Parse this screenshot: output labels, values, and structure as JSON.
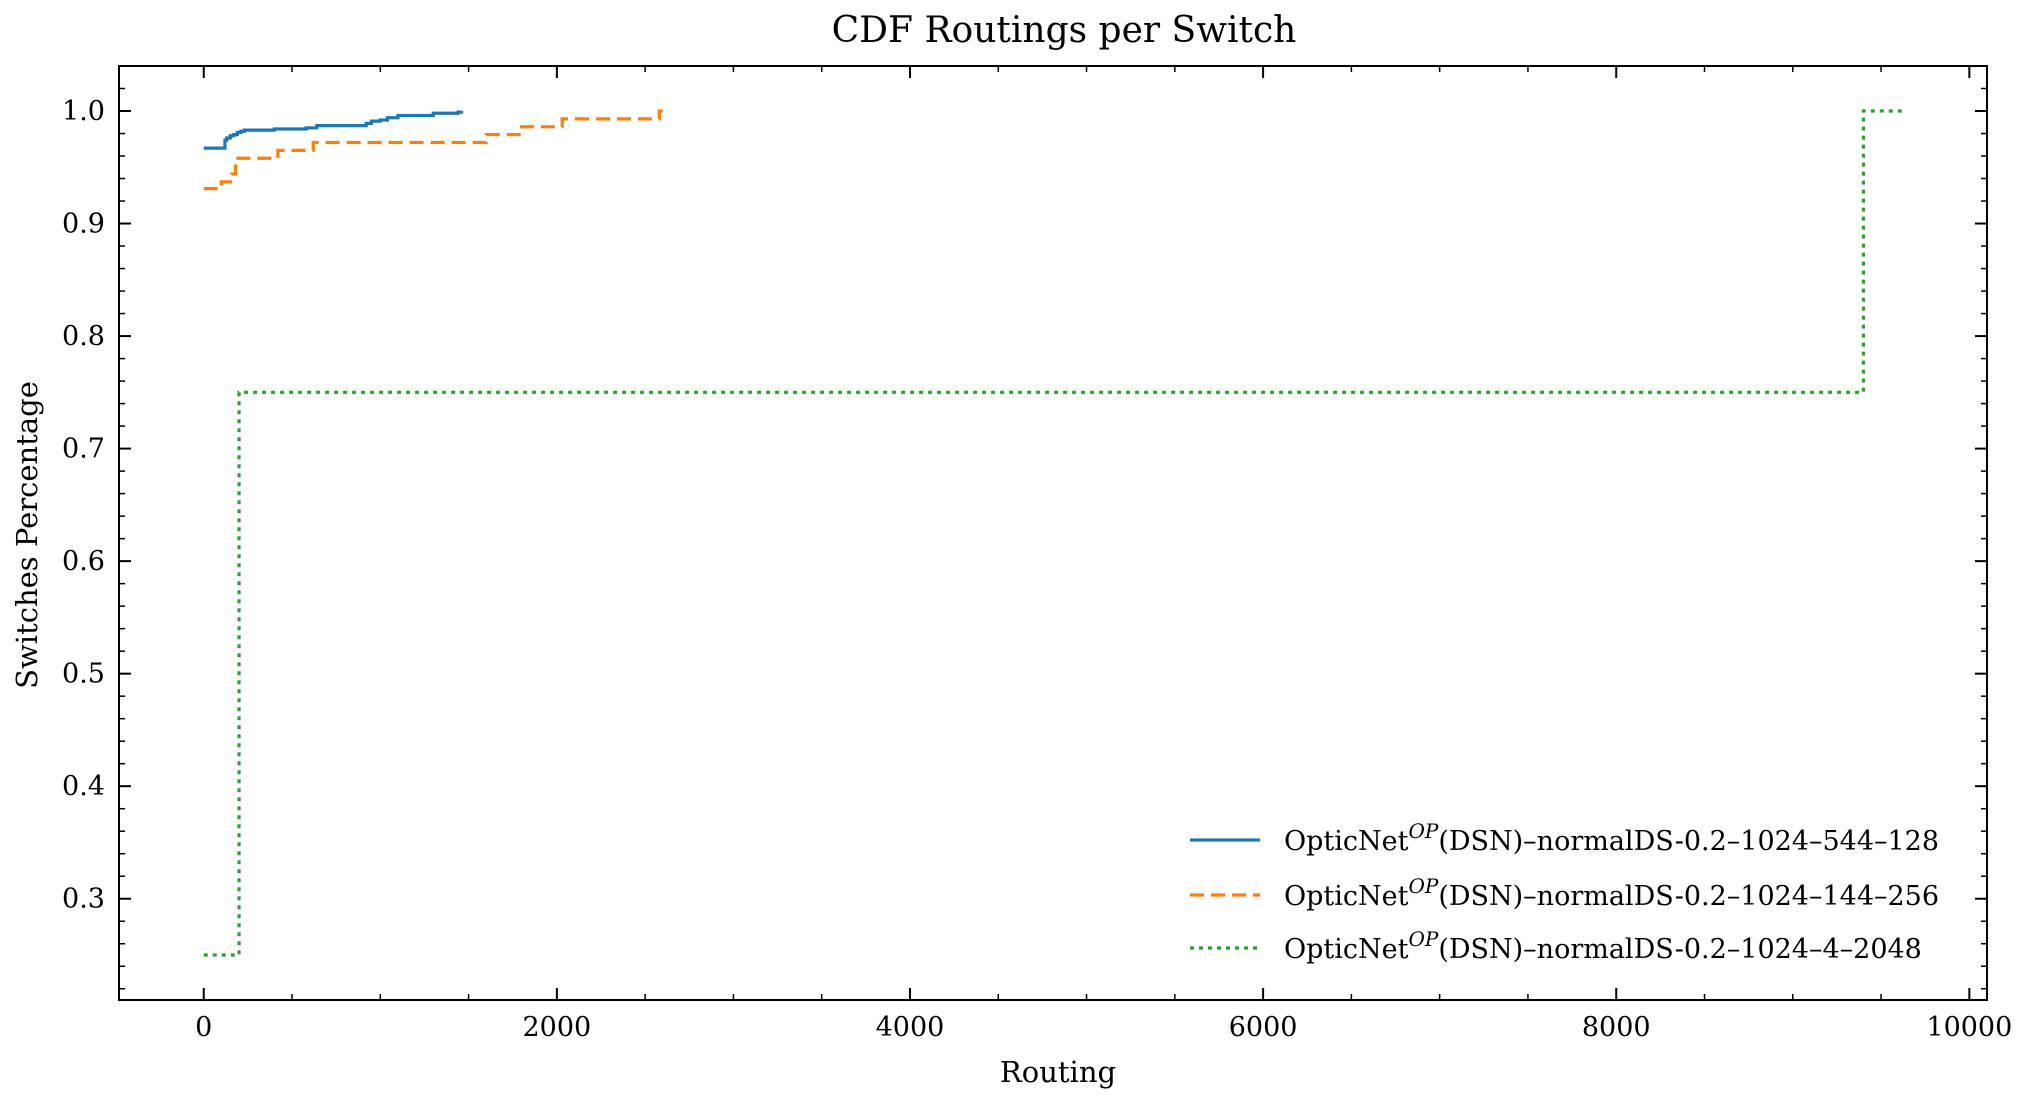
{
  "chart_data": {
    "type": "line",
    "title": "CDF Routings per Switch",
    "xlabel": "Routing",
    "ylabel": "Switches Percentage",
    "xlim": [
      -480,
      10100
    ],
    "ylim": [
      0.21,
      1.04
    ],
    "xticks": [
      0,
      2000,
      4000,
      6000,
      8000,
      10000
    ],
    "yticks": [
      0.3,
      0.4,
      0.5,
      0.6,
      0.7,
      0.8,
      0.9,
      1.0
    ],
    "xtick_labels": [
      "0",
      "2000",
      "4000",
      "6000",
      "8000",
      "10000"
    ],
    "ytick_labels": [
      "0.3",
      "0.4",
      "0.5",
      "0.6",
      "0.7",
      "0.8",
      "0.9",
      "1.0"
    ],
    "step": "post",
    "grid": false,
    "legend_position": "lower-right",
    "series": [
      {
        "name": "OpticNet",
        "name_sup": "OP",
        "name_suffix": "(DSN)–normalDS-0.2–1024–544–128",
        "color": "#1f77b4",
        "dash": "solid",
        "x": [
          0,
          120,
          130,
          150,
          170,
          190,
          210,
          230,
          400,
          580,
          640,
          920,
          950,
          1000,
          1040,
          1100,
          1300,
          1440,
          1460
        ],
        "y": [
          0.967,
          0.974,
          0.976,
          0.978,
          0.979,
          0.981,
          0.982,
          0.983,
          0.984,
          0.985,
          0.987,
          0.989,
          0.991,
          0.992,
          0.994,
          0.996,
          0.998,
          0.999,
          1.0
        ]
      },
      {
        "name": "OpticNet",
        "name_sup": "OP",
        "name_suffix": "(DSN)–normalDS-0.2–1024–144–256",
        "color": "#ff7f0e",
        "dash": "dashed",
        "x": [
          0,
          100,
          160,
          180,
          420,
          620,
          1600,
          1800,
          2030,
          2580,
          2600
        ],
        "y": [
          0.931,
          0.937,
          0.944,
          0.958,
          0.965,
          0.972,
          0.979,
          0.986,
          0.993,
          1.0,
          1.0
        ]
      },
      {
        "name": "OpticNet",
        "name_sup": "OP",
        "name_suffix": "(DSN)–normalDS-0.2–1024–4–2048",
        "color": "#2ca02c",
        "dash": "dotted",
        "x": [
          0,
          200,
          9400,
          9620
        ],
        "y": [
          0.25,
          0.75,
          1.0,
          1.0
        ]
      }
    ]
  }
}
